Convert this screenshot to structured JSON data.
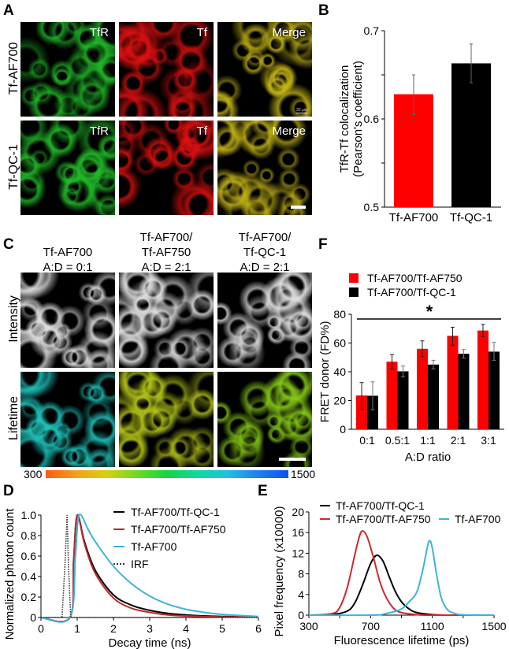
{
  "panels": {
    "A": {
      "letter": "A",
      "rows": [
        "Tf-AF700",
        "Tf-QC-1"
      ],
      "channels": [
        "TfR",
        "Tf",
        "Merge"
      ],
      "scale_bar_label": "20 µm",
      "tints": [
        "#22c02a",
        "#e01010",
        "#c8b818"
      ]
    },
    "B": {
      "letter": "B"
    },
    "C": {
      "letter": "C",
      "columns": [
        {
          "line1": "",
          "line2": "Tf-AF700",
          "line3": "A:D = 0:1"
        },
        {
          "line1": "Tf-AF700/",
          "line2": "Tf-AF750",
          "line3": "A:D = 2:1"
        },
        {
          "line1": "Tf-AF700/",
          "line2": "Tf-QC-1",
          "line3": "A:D = 2:1"
        }
      ],
      "rows": [
        "Intensity",
        "Lifetime"
      ],
      "lifetime_tints": [
        "#20c8c0",
        "#b8c818",
        "#88cc18"
      ],
      "colorbar": {
        "min_label": "300",
        "max_label": "1500",
        "stops": [
          "#ff5a10",
          "#f0a020",
          "#d8d010",
          "#70d820",
          "#10d840",
          "#10d8a0",
          "#20c0e0",
          "#2080f0",
          "#1050f0"
        ]
      }
    },
    "D": {
      "letter": "D"
    },
    "E": {
      "letter": "E"
    },
    "F": {
      "letter": "F"
    }
  },
  "chart_data": [
    {
      "id": "B",
      "type": "bar",
      "title": "",
      "ylabel": "TfR-Tf colocalization (Pearson's coefficient)",
      "ylabel_line1": "TfR-Tf colocalization",
      "ylabel_line2": "(Pearson's coefficient)",
      "xlabel": "",
      "categories": [
        "Tf-AF700",
        "Tf-QC-1"
      ],
      "values": [
        0.628,
        0.663
      ],
      "error_upper": [
        0.65,
        0.685
      ],
      "error_lower": [
        0.605,
        0.641
      ],
      "colors": [
        "#ff0000",
        "#000000"
      ],
      "ylim": [
        0.5,
        0.7
      ],
      "yticks": [
        0.5,
        0.55,
        0.6,
        0.65,
        0.7
      ],
      "ytick_labels": [
        "0.5",
        "",
        "0.6",
        "",
        "0.7"
      ]
    },
    {
      "id": "F",
      "type": "bar",
      "title": "",
      "ylabel": "FRET donor (FD%)",
      "xlabel": "A:D ratio",
      "categories": [
        "0:1",
        "0.5:1",
        "1:1",
        "2:1",
        "3:1"
      ],
      "series": [
        {
          "name": "Tf-AF700/Tf-AF750",
          "color": "#ff0000",
          "values": [
            23.5,
            47,
            56,
            65,
            68.7
          ],
          "error_upper": [
            32.5,
            52,
            61.5,
            71,
            73
          ],
          "error_lower": [
            14,
            42,
            50.5,
            58.5,
            64.5
          ]
        },
        {
          "name": "Tf-AF700/Tf-QC-1",
          "color": "#000000",
          "values": [
            23.3,
            40.3,
            45,
            52.5,
            54
          ],
          "error_upper": [
            33,
            44,
            48,
            55.5,
            60.5
          ],
          "error_lower": [
            13.5,
            36.5,
            42,
            49.5,
            48
          ]
        }
      ],
      "ylim": [
        0,
        80
      ],
      "yticks": [
        0,
        20,
        40,
        60,
        80
      ],
      "annotations": [
        {
          "text": "*",
          "type": "significance-bar",
          "from": "0:1",
          "to": "3:1"
        }
      ],
      "legend_position": "top"
    },
    {
      "id": "D",
      "type": "line",
      "title": "",
      "xlabel": "Decay time (ns)",
      "ylabel": "Normalized photon count",
      "xlim": [
        0,
        6
      ],
      "ylim": [
        0,
        1.0
      ],
      "xticks": [
        0,
        1,
        2,
        3,
        4,
        5,
        6
      ],
      "yticks": [
        0,
        0.2,
        0.4,
        0.6,
        0.8,
        1.0
      ],
      "ytick_labels": [
        "0",
        "0.2",
        "0.4",
        "0.6",
        "0.8",
        "1.0"
      ],
      "legend_position": "upper right",
      "series": [
        {
          "name": "Tf-AF700/Tf-QC-1",
          "color": "#000000",
          "style": "solid",
          "x": [
            0,
            0.8,
            0.9,
            1.0,
            1.2,
            1.5,
            2.0,
            2.5,
            3.0,
            3.5,
            4.0,
            4.5,
            5.0,
            6.0
          ],
          "y": [
            0,
            0,
            0.55,
            1.0,
            0.74,
            0.46,
            0.22,
            0.12,
            0.07,
            0.04,
            0.025,
            0.015,
            0.01,
            0.005
          ]
        },
        {
          "name": "Tf-AF700/Tf-AF750",
          "color": "#c0282d",
          "style": "solid",
          "x": [
            0,
            0.8,
            0.9,
            1.0,
            1.2,
            1.5,
            2.0,
            2.5,
            3.0,
            3.5,
            4.0,
            4.5,
            5.0,
            6.0
          ],
          "y": [
            0,
            0,
            0.55,
            1.0,
            0.72,
            0.43,
            0.19,
            0.09,
            0.05,
            0.025,
            0.015,
            0.01,
            0.005,
            0.003
          ]
        },
        {
          "name": "Tf-AF700",
          "color": "#3cb4d8",
          "style": "solid",
          "x": [
            0,
            0.8,
            0.95,
            1.05,
            1.3,
            1.5,
            2.0,
            2.5,
            3.0,
            3.5,
            4.0,
            4.5,
            5.0,
            6.0
          ],
          "y": [
            0,
            0,
            0.6,
            1.0,
            0.86,
            0.74,
            0.5,
            0.33,
            0.21,
            0.13,
            0.08,
            0.05,
            0.03,
            0.01
          ]
        },
        {
          "name": "IRF",
          "color": "#333333",
          "style": "dotted",
          "x": [
            0,
            0.58,
            0.66,
            0.72,
            0.76,
            0.82,
            6.0
          ],
          "y": [
            0,
            0,
            0.5,
            1.0,
            0.5,
            0,
            0
          ]
        }
      ]
    },
    {
      "id": "E",
      "type": "line",
      "title": "",
      "xlabel": "Fluorescence lifetime (ps)",
      "ylabel": "Pixel frequency (x10000)",
      "xlim": [
        300,
        1500
      ],
      "ylim": [
        0,
        20
      ],
      "xticks": [
        300,
        500,
        700,
        900,
        1100,
        1300,
        1500
      ],
      "xtick_labels": [
        "300",
        "",
        "700",
        "",
        "1100",
        "",
        "1500"
      ],
      "yticks": [
        0,
        4,
        8,
        12,
        16,
        20
      ],
      "legend_position": "top",
      "series": [
        {
          "name": "Tf-AF700/Tf-QC-1",
          "color": "#000000",
          "x": [
            300,
            450,
            550,
            600,
            650,
            700,
            740,
            780,
            820,
            860,
            900,
            950,
            1000,
            1100,
            1200,
            1500
          ],
          "y": [
            0,
            0.1,
            0.8,
            2.5,
            6,
            10,
            11.6,
            10.5,
            7.5,
            4.6,
            2.6,
            1.2,
            0.5,
            0.1,
            0,
            0
          ]
        },
        {
          "name": "Tf-AF700/Tf-AF750",
          "color": "#d0282d",
          "x": [
            300,
            450,
            500,
            550,
            600,
            630,
            650,
            680,
            720,
            760,
            800,
            850,
            900,
            1000,
            1100,
            1500
          ],
          "y": [
            0,
            0.3,
            1.5,
            5.5,
            12,
            15.5,
            16.3,
            15,
            11,
            6.5,
            3.5,
            1.3,
            0.5,
            0.1,
            0,
            0
          ]
        },
        {
          "name": "Tf-AF700",
          "color": "#3cb4d8",
          "x": [
            300,
            700,
            800,
            900,
            950,
            1000,
            1040,
            1070,
            1085,
            1100,
            1130,
            1160,
            1200,
            1250,
            1300,
            1500
          ],
          "y": [
            0,
            0,
            0.3,
            1.2,
            2.6,
            4.5,
            9,
            13.5,
            14.4,
            13,
            7.5,
            3.2,
            1.0,
            0.3,
            0.05,
            0
          ]
        }
      ]
    }
  ]
}
